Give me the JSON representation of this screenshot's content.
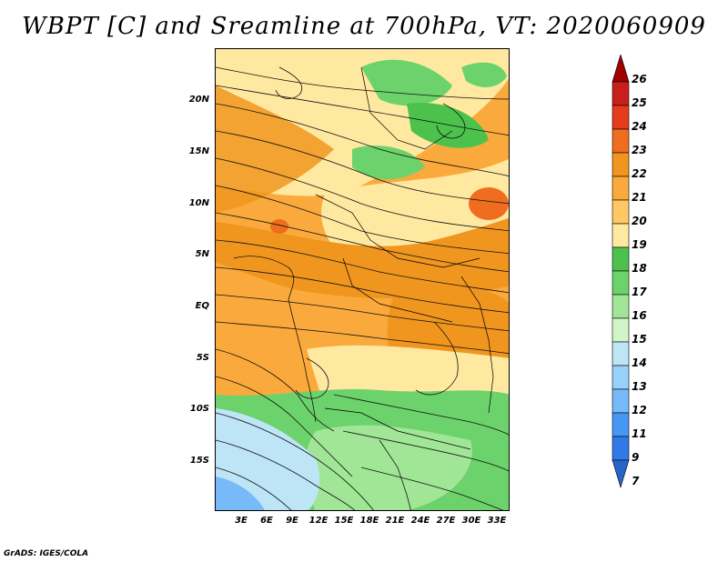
{
  "title": "WBPT [C] and Sreamline at 700hPa, VT: 2020060909",
  "credit": "GrADS: IGES/COLA",
  "y_axis_labels": [
    "20N",
    "15N",
    "10N",
    "5N",
    "EQ",
    "5S",
    "10S",
    "15S"
  ],
  "x_axis_labels": [
    "3E",
    "6E",
    "9E",
    "12E",
    "15E",
    "18E",
    "21E",
    "24E",
    "27E",
    "30E",
    "33E"
  ],
  "colorbar": {
    "labels": [
      "26",
      "25",
      "24",
      "23",
      "22",
      "21",
      "20",
      "19",
      "18",
      "17",
      "16",
      "15",
      "14",
      "13",
      "12",
      "11",
      "9",
      "7"
    ],
    "colors": [
      "#a00000",
      "#c81e1e",
      "#e63c1e",
      "#f06c1e",
      "#f0961e",
      "#faaa3c",
      "#ffc864",
      "#ffe8a0",
      "#4cc24c",
      "#6cd26c",
      "#a0e696",
      "#d2f5c8",
      "#bde5f5",
      "#96d2fa",
      "#78b9fa",
      "#4696f5",
      "#3278e6",
      "#2764c8"
    ]
  },
  "map_colors": {
    "sea_cool": "#bde5f5",
    "light_green": "#a0e696",
    "green": "#6cd26c",
    "pale_yellow": "#ffe8a0",
    "light_orange": "#ffc864",
    "orange": "#faaa3c",
    "dark_orange": "#f0961e",
    "red_orange": "#f06c1e",
    "blue": "#78b9fa"
  }
}
